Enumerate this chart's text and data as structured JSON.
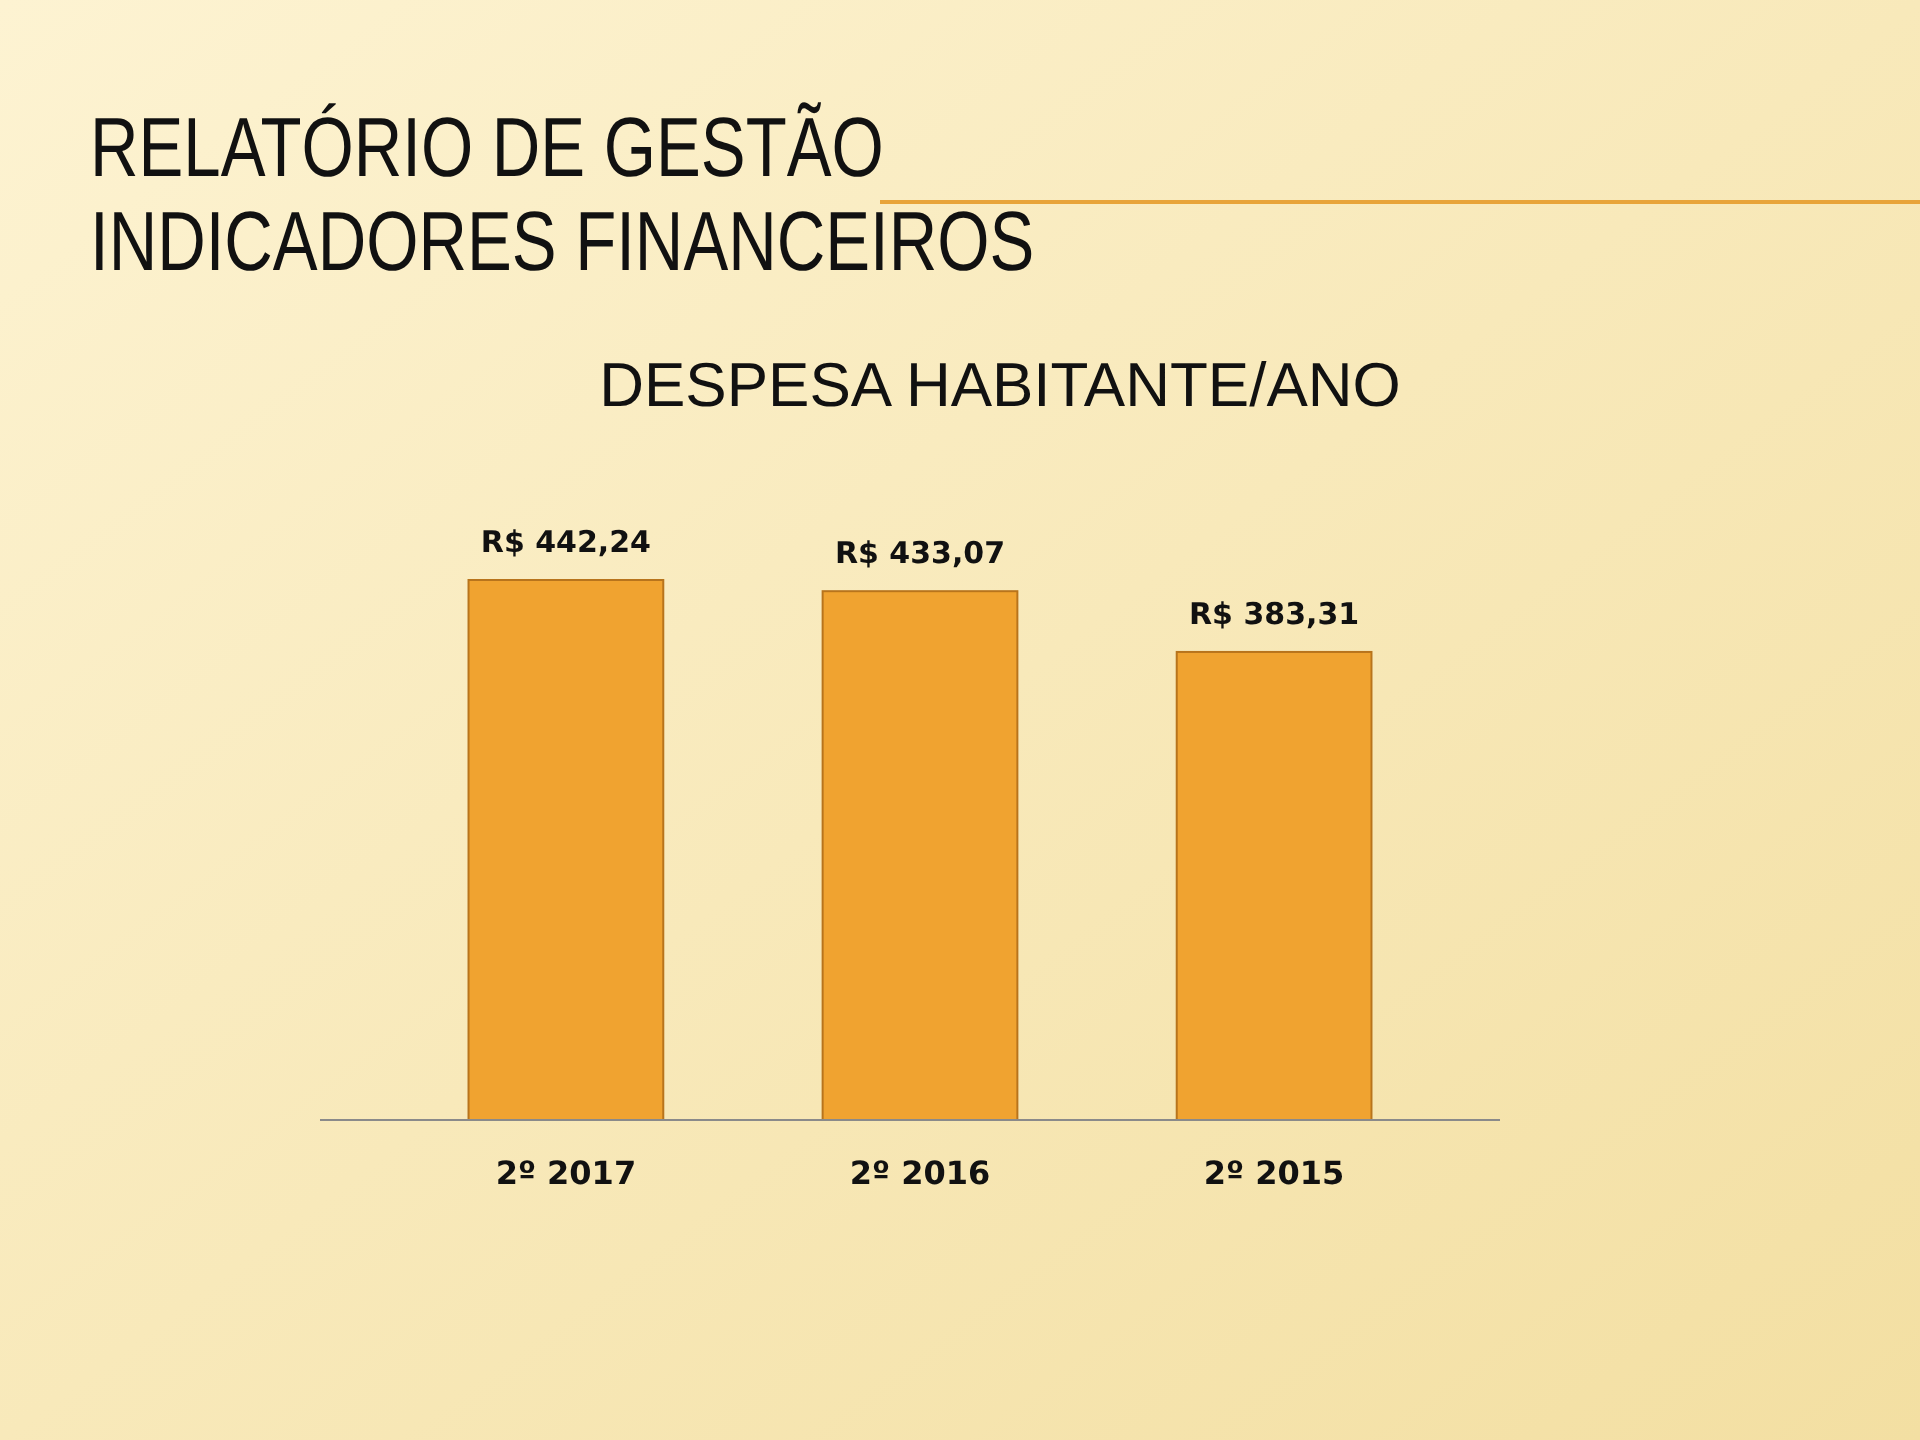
{
  "chart_data": {
    "type": "bar",
    "title": "RELATÓRIO DE GESTÃO\nINDICADORES FINANCEIROS",
    "subtitle": "DESPESA HABITANTE/ANO",
    "categories": [
      "2º 2017",
      "2º 2016",
      "2º 2015"
    ],
    "values": [
      442.24,
      433.07,
      383.31
    ],
    "color": "#f0a330",
    "value_labels": [
      "R$ 442,24",
      "R$ 433,07",
      "R$ 383,31"
    ],
    "tick_labels": "x"
  }
}
